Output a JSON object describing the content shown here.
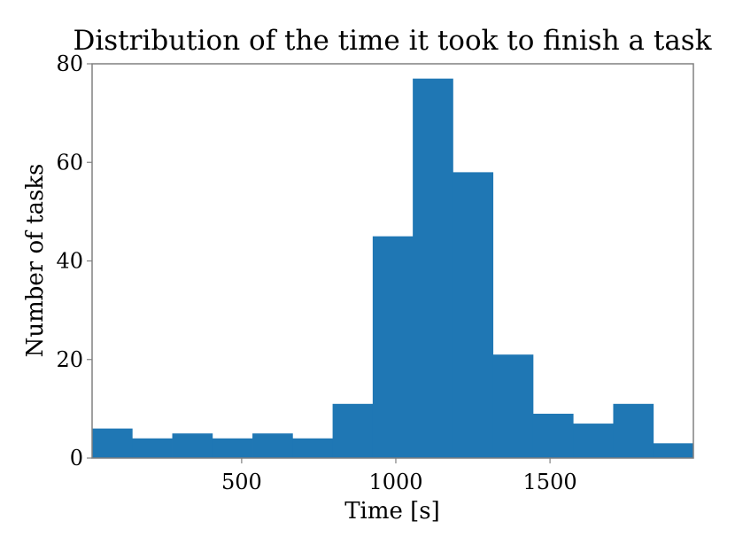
{
  "chart_data": {
    "type": "bar",
    "title": "Distribution of the time it took to finish a task",
    "xlabel": "Time [s]",
    "ylabel": "Number of tasks",
    "xlim": [
      15,
      1965
    ],
    "ylim": [
      0,
      80
    ],
    "x_ticks": [
      500,
      1000,
      1500
    ],
    "y_ticks": [
      0,
      20,
      40,
      60,
      80
    ],
    "bin_edges": [
      15,
      145,
      275,
      405,
      535,
      665,
      795,
      925,
      1055,
      1185,
      1315,
      1445,
      1575,
      1705,
      1835,
      1965
    ],
    "values": [
      6,
      4,
      5,
      4,
      5,
      4,
      11,
      45,
      77,
      58,
      21,
      9,
      7,
      11,
      3
    ],
    "bar_color": "#1f77b4",
    "grid": false
  }
}
